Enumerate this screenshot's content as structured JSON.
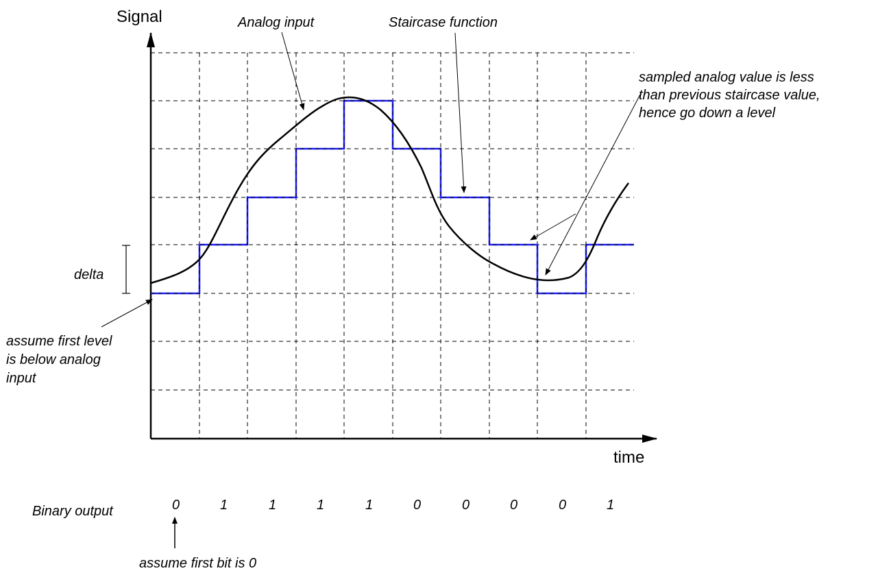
{
  "axes": {
    "y_label": "Signal",
    "x_label": "time"
  },
  "annotations": {
    "analog_input": "Analog input",
    "staircase_function": "Staircase function",
    "sampled_note": [
      "sampled analog value is less",
      "than previous staircase value,",
      "hence go down a level"
    ],
    "delta": "delta",
    "first_level_note": [
      "assume first level",
      "is below analog",
      "input"
    ],
    "first_bit_note": "assume first bit is 0"
  },
  "binary_output": {
    "label": "Binary output",
    "bits": [
      "0",
      "1",
      "1",
      "1",
      "1",
      "0",
      "0",
      "0",
      "0",
      "1"
    ]
  },
  "colors": {
    "staircase": "#1a1aff",
    "analog": "#000000",
    "grid": "#000000"
  }
}
